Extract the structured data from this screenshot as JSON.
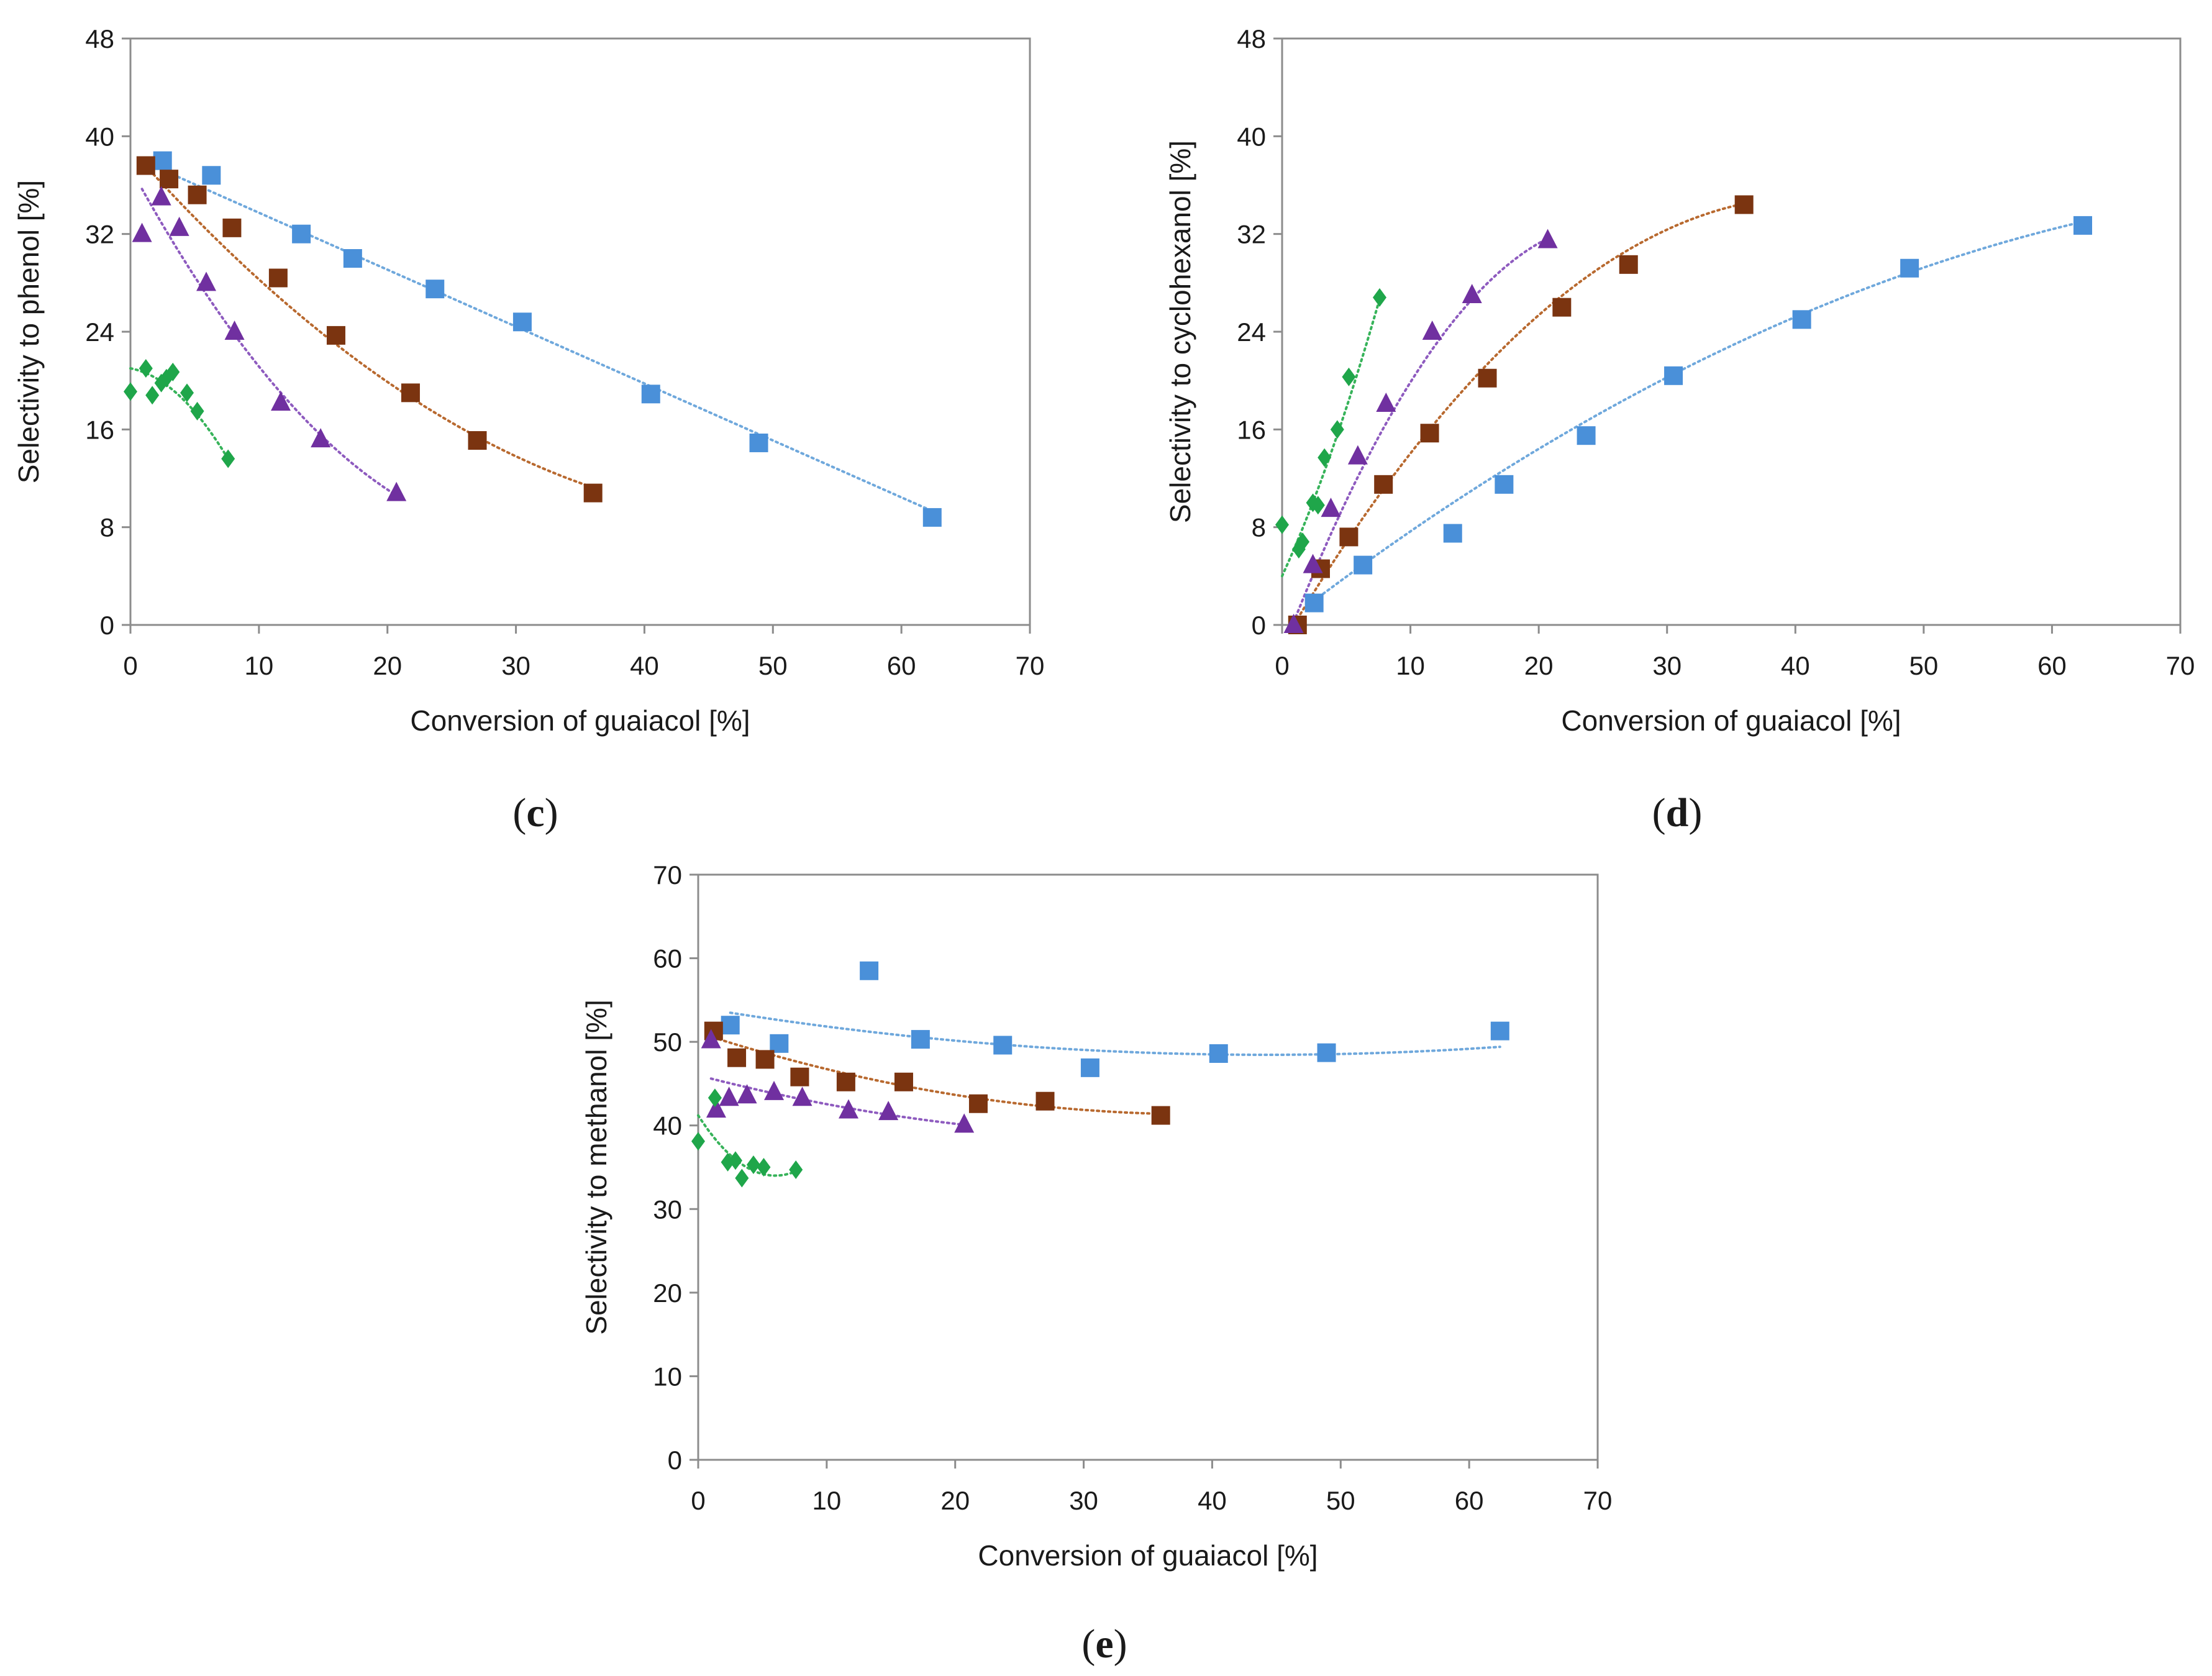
{
  "colors": {
    "blue": "#4a90d9",
    "brown": "#7b3410",
    "purple": "#7030a0",
    "green": "#1fa64a",
    "blue_trend": "#6fa8dc",
    "brown_trend": "#b8692f",
    "purple_trend": "#8e5bbf",
    "green_trend": "#37b35a"
  },
  "chart_data": [
    {
      "id": "c",
      "panel_label": "c",
      "type": "scatter",
      "xlabel": "Conversion of guaiacol [%]",
      "ylabel": "Selectivity to phenol [%]",
      "xlim": [
        0,
        70
      ],
      "ylim": [
        0,
        48
      ],
      "xticks": [
        "0",
        "10",
        "20",
        "30",
        "40",
        "50",
        "60",
        "70"
      ],
      "yticks": [
        "0",
        "8",
        "16",
        "24",
        "32",
        "40",
        "48"
      ],
      "series": [
        {
          "name": "blue",
          "marker": "square",
          "x": [
            2.5,
            6.3,
            13.3,
            17.3,
            23.7,
            30.5,
            40.5,
            48.9,
            62.4
          ],
          "y": [
            38.0,
            36.8,
            32.0,
            30.0,
            27.5,
            24.8,
            18.9,
            14.9,
            8.8
          ],
          "fit": {
            "type": "poly",
            "coef": [
              38.4,
              -0.466,
              0.0
            ]
          }
        },
        {
          "name": "brown",
          "marker": "square",
          "x": [
            1.2,
            3.0,
            5.2,
            7.9,
            11.5,
            16.0,
            21.8,
            27.0,
            36.0
          ],
          "y": [
            37.6,
            36.5,
            35.2,
            32.5,
            28.4,
            23.7,
            19.0,
            15.1,
            10.8
          ],
          "fit": {
            "type": "poly",
            "coef": [
              38.97,
              -1.184,
              0.0115
            ]
          }
        },
        {
          "name": "purple",
          "marker": "triangle",
          "x": [
            0.9,
            2.4,
            3.8,
            5.9,
            8.1,
            11.7,
            14.8,
            20.7
          ],
          "y": [
            32.0,
            35.0,
            32.5,
            28.0,
            24.0,
            18.2,
            15.2,
            10.8
          ],
          "fit": {
            "type": "poly",
            "coef": [
              37.4,
              -1.934,
              0.0309
            ]
          }
        },
        {
          "name": "green",
          "marker": "diamond",
          "x": [
            0.0,
            1.2,
            1.7,
            2.4,
            2.8,
            3.3,
            4.4,
            5.2,
            7.6
          ],
          "y": [
            19.1,
            21.0,
            18.8,
            19.8,
            20.2,
            20.7,
            19.0,
            17.5,
            13.6
          ],
          "fit": {
            "type": "poly",
            "coef": [
              21.0,
              -0.2,
              -0.102
            ]
          }
        }
      ]
    },
    {
      "id": "d",
      "panel_label": "d",
      "type": "scatter",
      "xlabel": "Conversion of guaiacol [%]",
      "ylabel": "Selectivity  to cyclohexanol [%]",
      "xlim": [
        0,
        70
      ],
      "ylim": [
        0,
        48
      ],
      "xticks": [
        "0",
        "10",
        "20",
        "30",
        "40",
        "50",
        "60",
        "70"
      ],
      "yticks": [
        "0",
        "8",
        "16",
        "24",
        "32",
        "40",
        "48"
      ],
      "series": [
        {
          "name": "blue",
          "marker": "square",
          "x": [
            2.5,
            6.3,
            13.3,
            17.3,
            23.7,
            30.5,
            40.5,
            48.9,
            62.4
          ],
          "y": [
            1.8,
            4.9,
            7.5,
            11.5,
            15.5,
            20.4,
            25.0,
            29.2,
            32.7
          ],
          "fit": {
            "type": "poly",
            "coef": [
              0.0,
              0.811,
              -0.00452
            ]
          }
        },
        {
          "name": "brown",
          "marker": "square",
          "x": [
            1.2,
            3.0,
            5.2,
            7.9,
            11.5,
            16.0,
            21.8,
            27.0,
            36.0
          ],
          "y": [
            0.0,
            4.6,
            7.2,
            11.5,
            15.7,
            20.2,
            26.0,
            29.5,
            34.4
          ],
          "fit": {
            "type": "poly",
            "coef": [
              -1.6,
              1.78,
              -0.0216
            ]
          }
        },
        {
          "name": "purple",
          "marker": "triangle",
          "x": [
            0.9,
            2.4,
            3.8,
            5.9,
            8.1,
            11.7,
            14.8,
            20.7
          ],
          "y": [
            0.0,
            4.9,
            9.5,
            13.8,
            18.1,
            24.0,
            27.0,
            31.5
          ],
          "fit": {
            "type": "poly",
            "coef": [
              -2.2,
              2.74,
              -0.0534
            ]
          }
        },
        {
          "name": "green",
          "marker": "diamond",
          "x": [
            0.0,
            1.3,
            1.6,
            2.4,
            2.8,
            3.3,
            4.3,
            5.2,
            7.6
          ],
          "y": [
            8.2,
            6.2,
            6.8,
            10.0,
            9.8,
            13.7,
            16.0,
            20.3,
            26.8
          ],
          "fit": {
            "type": "poly",
            "coef": [
              4.0,
              2.3,
              0.09
            ]
          }
        }
      ]
    },
    {
      "id": "e",
      "panel_label": "e",
      "type": "scatter",
      "xlabel": "Conversion of guaiacol [%]",
      "ylabel": "Selectivity to methanol [%]",
      "xlim": [
        0,
        70
      ],
      "ylim": [
        0,
        70
      ],
      "xticks": [
        "0",
        "10",
        "20",
        "30",
        "40",
        "50",
        "60",
        "70"
      ],
      "yticks": [
        "0",
        "10",
        "20",
        "30",
        "40",
        "50",
        "60",
        "70"
      ],
      "series": [
        {
          "name": "blue",
          "marker": "square",
          "x": [
            2.5,
            6.3,
            13.3,
            17.3,
            23.7,
            30.5,
            40.5,
            48.9,
            62.4
          ],
          "y": [
            52.0,
            49.8,
            58.5,
            50.3,
            49.6,
            46.9,
            48.6,
            48.7,
            51.3
          ],
          "fit": {
            "type": "poly",
            "coef": [
              54.1,
              -0.2556,
              0.00289
            ]
          }
        },
        {
          "name": "brown",
          "marker": "square",
          "x": [
            1.2,
            3.0,
            5.2,
            7.9,
            11.5,
            16.0,
            21.8,
            27.0,
            36.0
          ],
          "y": [
            51.3,
            48.1,
            47.9,
            45.8,
            45.2,
            45.2,
            42.6,
            42.9,
            41.2
          ],
          "fit": {
            "type": "poly",
            "coef": [
              51.1,
              -0.5,
              0.0064
            ]
          }
        },
        {
          "name": "purple",
          "marker": "triangle",
          "x": [
            1.0,
            1.4,
            2.4,
            3.8,
            5.9,
            8.1,
            11.7,
            14.8,
            20.7
          ],
          "y": [
            50.2,
            41.9,
            43.3,
            43.6,
            44.0,
            43.3,
            41.8,
            41.6,
            40.1
          ],
          "fit": {
            "type": "poly",
            "coef": [
              46.0,
              -0.4,
              0.0055
            ]
          }
        },
        {
          "name": "green",
          "marker": "diamond",
          "x": [
            0.0,
            1.3,
            2.3,
            2.9,
            3.4,
            4.3,
            5.1,
            7.6
          ],
          "y": [
            38.1,
            43.3,
            35.6,
            35.8,
            33.7,
            35.3,
            35.0,
            34.7
          ],
          "fit": {
            "type": "poly",
            "coef": [
              41.2,
              -2.4,
              0.2
            ]
          }
        }
      ]
    }
  ]
}
